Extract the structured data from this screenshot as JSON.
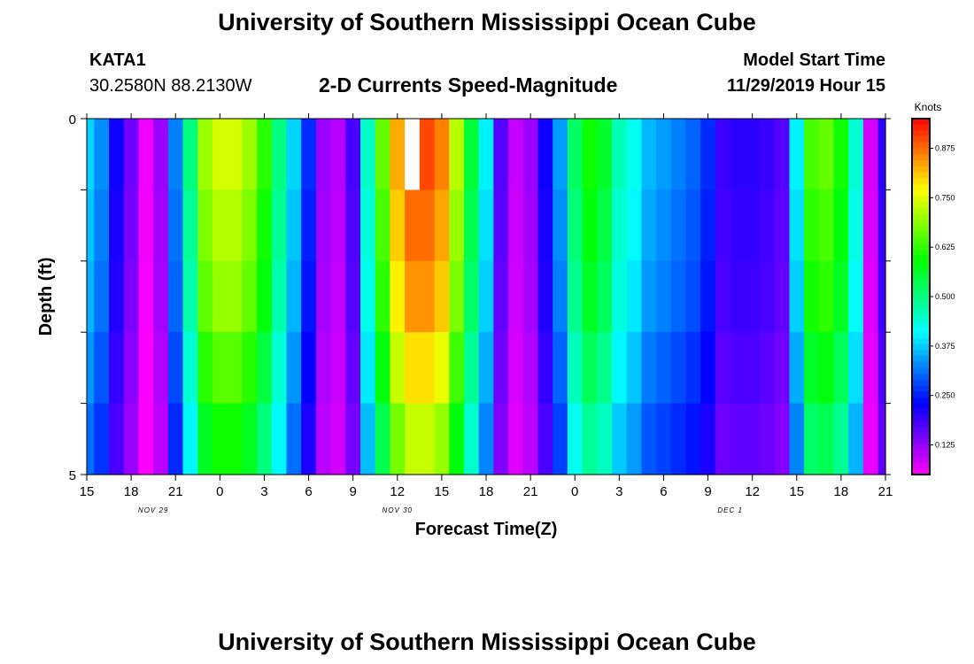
{
  "header": {
    "title": "University of Southern Mississippi Ocean Cube",
    "station": "KATA1",
    "coords": "30.2580N 88.2130W",
    "subtitle": "2-D Currents Speed-Magnitude",
    "model_start_label": "Model Start Time",
    "model_start_value": "11/29/2019 Hour 15"
  },
  "footer": {
    "title": "University of Southern Mississippi Ocean Cube"
  },
  "chart_data": {
    "type": "heatmap",
    "xlabel": "Forecast Time(Z)",
    "ylabel": "Depth (ft)",
    "colorbar_label": "Knots",
    "colorbar_ticks": [
      "0.125",
      "0.250",
      "0.375",
      "0.500",
      "0.625",
      "0.750",
      "0.875"
    ],
    "colorbar_range": [
      0.05,
      0.95
    ],
    "x_range_hours": [
      0,
      54
    ],
    "x_tick_labels": [
      "15",
      "18",
      "21",
      "0",
      "3",
      "6",
      "9",
      "12",
      "15",
      "18",
      "21",
      "0",
      "3",
      "6",
      "9",
      "12",
      "15",
      "18",
      "21"
    ],
    "date_labels": [
      {
        "text": "NOV 29",
        "hour": 4.5
      },
      {
        "text": "NOV 30",
        "hour": 21
      },
      {
        "text": "DEC 1",
        "hour": 43.5
      }
    ],
    "y_range_ft": [
      0,
      5
    ],
    "y_tick_labels": [
      "0",
      "5"
    ],
    "depth_layers": 5,
    "missing": {
      "hour": 22,
      "layer": 0
    },
    "speed_knots_surface": [
      0.38,
      0.33,
      0.22,
      0.15,
      0.06,
      0.12,
      0.32,
      0.5,
      0.7,
      0.74,
      0.74,
      0.7,
      0.62,
      0.5,
      0.38,
      0.26,
      0.12,
      0.1,
      0.18,
      0.45,
      0.66,
      0.83,
      0.9,
      0.9,
      0.86,
      0.72,
      0.55,
      0.4,
      0.17,
      0.09,
      0.12,
      0.22,
      0.34,
      0.52,
      0.6,
      0.56,
      0.46,
      0.42,
      0.36,
      0.34,
      0.32,
      0.3,
      0.26,
      0.19,
      0.2,
      0.2,
      0.19,
      0.17,
      0.4,
      0.64,
      0.66,
      0.6,
      0.44,
      0.08,
      0.2
    ],
    "depth_factors": [
      1.0,
      0.97,
      0.94,
      0.88,
      0.81
    ]
  }
}
